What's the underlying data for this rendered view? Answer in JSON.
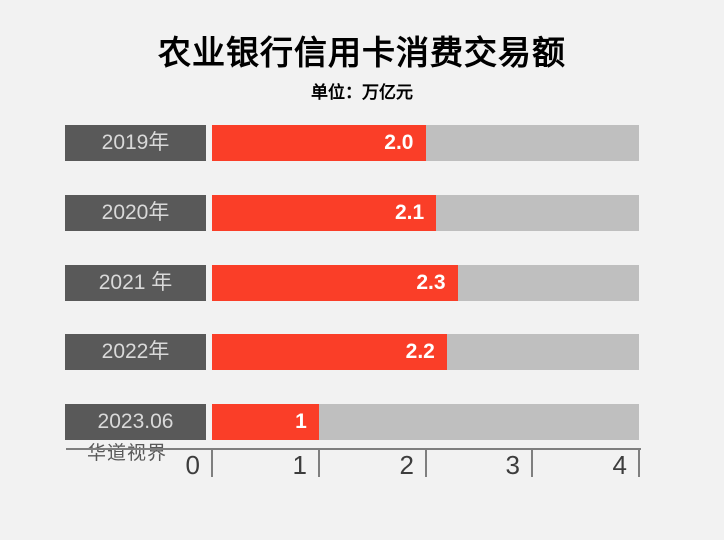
{
  "chart_data": {
    "type": "bar",
    "orientation": "horizontal",
    "title": "农业银行信用卡消费交易额",
    "unit_label": "单位：万亿元",
    "categories": [
      "2019年",
      "2020年",
      "2021 年",
      "2022年",
      "2023.06"
    ],
    "values": [
      2.0,
      2.1,
      2.3,
      2.2,
      1
    ],
    "value_labels": [
      "2.0",
      "2.1",
      "2.3",
      "2.2",
      "1"
    ],
    "xlim": [
      0,
      4
    ],
    "x_ticks": [
      "0",
      "1",
      "2",
      "3",
      "4"
    ],
    "grid": false,
    "legend": "none",
    "value_label_position": "inside-end",
    "category_label_style": "dark-box-left"
  },
  "watermark": "华道视界",
  "colors": {
    "background": "#f2f2f2",
    "bar_fill": "#fa3e28",
    "bar_track": "#bfbfbf",
    "category_box": "#595959",
    "category_text": "#d9d9d9",
    "value_text": "#ffffff",
    "axis": "#7f7f7f",
    "tick_text": "#3d3d3d",
    "title_text": "#000000",
    "watermark_text": "#595959"
  }
}
